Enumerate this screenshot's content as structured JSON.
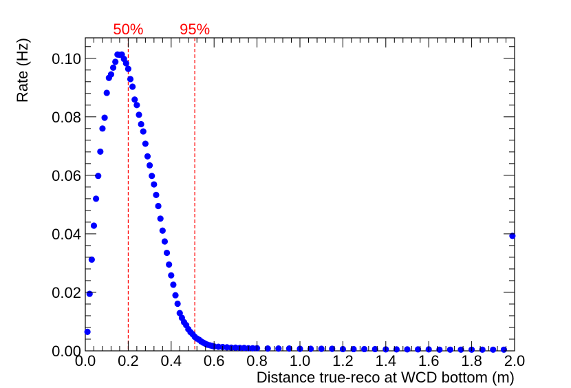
{
  "chart_data": {
    "type": "scatter",
    "title": "",
    "xlabel": "Distance true-reco at WCD bottom (m)",
    "ylabel": "Rate (Hz)",
    "xlim": [
      0.0,
      2.0
    ],
    "ylim": [
      0.0,
      0.107
    ],
    "x_ticks": [
      "0.0",
      "0.2",
      "0.4",
      "0.6",
      "0.8",
      "1.0",
      "1.2",
      "1.4",
      "1.6",
      "1.8",
      "2.0"
    ],
    "y_ticks": [
      "0.00",
      "0.02",
      "0.04",
      "0.06",
      "0.08",
      "0.10"
    ],
    "grid": false,
    "marker_color": "#0000ff",
    "vlines": [
      {
        "x": 0.2,
        "label": "50%",
        "color": "#ff0000"
      },
      {
        "x": 0.51,
        "label": "95%",
        "color": "#ff0000"
      }
    ],
    "series": [
      {
        "x": [
          0.01,
          0.02,
          0.03,
          0.04,
          0.05,
          0.06,
          0.07,
          0.08,
          0.09,
          0.1,
          0.11,
          0.12,
          0.13,
          0.14,
          0.15,
          0.16,
          0.17,
          0.18,
          0.19,
          0.2,
          0.21,
          0.22,
          0.23,
          0.24,
          0.25,
          0.26,
          0.27,
          0.28,
          0.29,
          0.3,
          0.31,
          0.32,
          0.33,
          0.34,
          0.35,
          0.36,
          0.37,
          0.38,
          0.39,
          0.4,
          0.41,
          0.42,
          0.43,
          0.44,
          0.45,
          0.46,
          0.47,
          0.48,
          0.49,
          0.5,
          0.51,
          0.52,
          0.53,
          0.54,
          0.55,
          0.56,
          0.57,
          0.58,
          0.59,
          0.6,
          0.62,
          0.64,
          0.66,
          0.68,
          0.7,
          0.72,
          0.74,
          0.76,
          0.78,
          0.8,
          0.85,
          0.9,
          0.95,
          1.0,
          1.05,
          1.1,
          1.15,
          1.2,
          1.25,
          1.3,
          1.35,
          1.4,
          1.45,
          1.5,
          1.55,
          1.6,
          1.65,
          1.7,
          1.75,
          1.8,
          1.85,
          1.9,
          1.95,
          1.99
        ],
        "y": [
          0.0065,
          0.0195,
          0.0312,
          0.0428,
          0.052,
          0.0598,
          0.0681,
          0.076,
          0.0797,
          0.0882,
          0.0933,
          0.0945,
          0.0968,
          0.0988,
          0.1013,
          0.1012,
          0.1013,
          0.0998,
          0.0983,
          0.0964,
          0.0929,
          0.0903,
          0.0859,
          0.084,
          0.0807,
          0.0775,
          0.075,
          0.0708,
          0.0665,
          0.0634,
          0.0598,
          0.0569,
          0.0533,
          0.0495,
          0.0452,
          0.0411,
          0.0374,
          0.0335,
          0.0295,
          0.0258,
          0.0226,
          0.019,
          0.0161,
          0.0129,
          0.0113,
          0.0098,
          0.0088,
          0.0074,
          0.0064,
          0.0057,
          0.0048,
          0.0042,
          0.0038,
          0.0032,
          0.0028,
          0.0024,
          0.0021,
          0.0019,
          0.0017,
          0.0015,
          0.0014,
          0.0013,
          0.0012,
          0.0011,
          0.0011,
          0.001,
          0.001,
          0.0009,
          0.0009,
          0.0009,
          0.0008,
          0.0008,
          0.0008,
          0.0007,
          0.0007,
          0.0007,
          0.0007,
          0.0006,
          0.0006,
          0.0006,
          0.0006,
          0.0005,
          0.0005,
          0.0005,
          0.0005,
          0.0005,
          0.0004,
          0.0004,
          0.0004,
          0.0004,
          0.0004,
          0.0004,
          0.0004,
          0.0393
        ]
      }
    ]
  }
}
